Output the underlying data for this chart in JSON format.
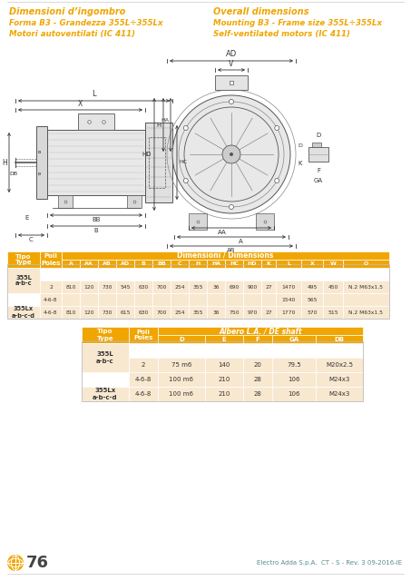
{
  "title1_it": "Dimensioni d’ingombro",
  "title1_en": "Overall dimensions",
  "subtitle_it": "Forma B3 - Grandezza 355L÷355Lx\nMotori autoventilati (IC 411)",
  "subtitle_en": "Mounting B3 - Frame size 355L÷355Lx\nSelf-ventilated motors (IC 411)",
  "orange": "#F0A500",
  "teal": "#5A8A8A",
  "row_bg": "#F8E8D0",
  "white": "#FFFFFF",
  "footer_page": "76",
  "footer_text": "Electro Adda S.p.A.  CT - S - Rev. 3 09-2016-IE",
  "bg_color": "#FFFFFF",
  "line_color": "#555555",
  "dim_color": "#333333"
}
